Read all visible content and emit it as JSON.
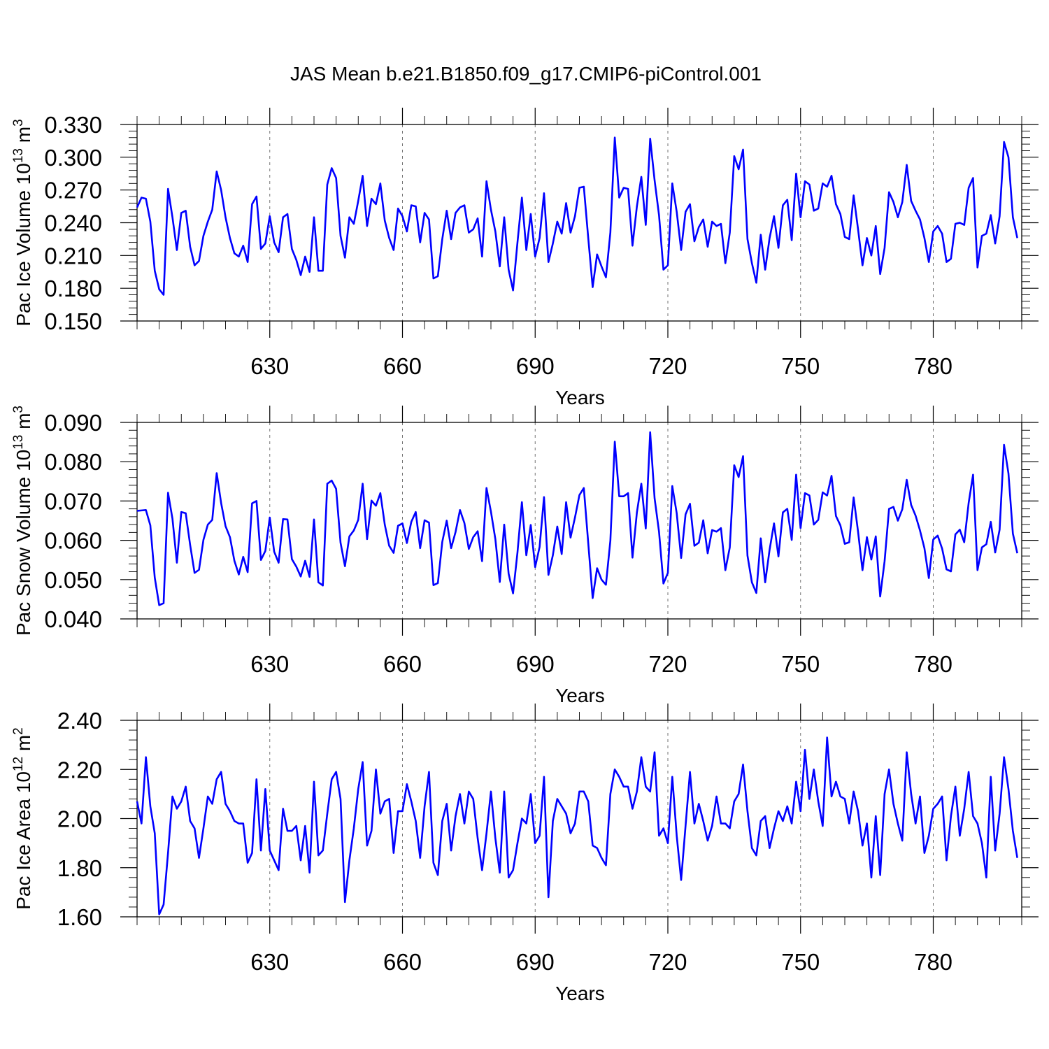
{
  "figure_title": "JAS Mean b.e21.B1850.f09_g17.CMIP6-piControl.001",
  "colors": {
    "series": "#0000ff",
    "axes": "#000000",
    "background": "#ffffff"
  },
  "chart_data": [
    {
      "type": "line",
      "ylabel": "Pac Ice Volume",
      "ylabel_unit_base": "10",
      "ylabel_unit_exp": "13",
      "ylabel_unit_name": "m",
      "ylabel_unit_pow": "3",
      "xlabel": "Years",
      "xlim": [
        600,
        800
      ],
      "ylim": [
        0.15,
        0.33
      ],
      "x_ticks": [
        630,
        660,
        690,
        720,
        750,
        780
      ],
      "x_tick_labels": [
        "630",
        "660",
        "690",
        "720",
        "750",
        "780"
      ],
      "y_ticks": [
        0.15,
        0.18,
        0.21,
        0.24,
        0.27,
        0.3,
        0.33
      ],
      "y_tick_labels": [
        "0.150",
        "0.180",
        "0.210",
        "0.240",
        "0.270",
        "0.300",
        "0.330"
      ],
      "y_minor_step": 0.006,
      "x_start": 600,
      "values": [
        0.254,
        0.263,
        0.262,
        0.241,
        0.196,
        0.179,
        0.174,
        0.271,
        0.245,
        0.215,
        0.249,
        0.251,
        0.218,
        0.201,
        0.205,
        0.228,
        0.241,
        0.252,
        0.287,
        0.27,
        0.245,
        0.226,
        0.212,
        0.209,
        0.219,
        0.204,
        0.257,
        0.264,
        0.216,
        0.221,
        0.246,
        0.222,
        0.213,
        0.245,
        0.248,
        0.216,
        0.206,
        0.192,
        0.209,
        0.195,
        0.245,
        0.196,
        0.196,
        0.275,
        0.29,
        0.281,
        0.228,
        0.208,
        0.245,
        0.239,
        0.26,
        0.283,
        0.237,
        0.262,
        0.257,
        0.276,
        0.242,
        0.226,
        0.215,
        0.253,
        0.246,
        0.232,
        0.256,
        0.255,
        0.222,
        0.249,
        0.243,
        0.189,
        0.191,
        0.225,
        0.251,
        0.225,
        0.249,
        0.254,
        0.256,
        0.231,
        0.234,
        0.244,
        0.209,
        0.278,
        0.252,
        0.232,
        0.2,
        0.245,
        0.197,
        0.178,
        0.222,
        0.263,
        0.215,
        0.248,
        0.209,
        0.226,
        0.267,
        0.204,
        0.221,
        0.241,
        0.23,
        0.258,
        0.231,
        0.246,
        0.272,
        0.273,
        0.226,
        0.181,
        0.211,
        0.2,
        0.19,
        0.231,
        0.318,
        0.263,
        0.272,
        0.271,
        0.219,
        0.255,
        0.282,
        0.238,
        0.317,
        0.279,
        0.247,
        0.197,
        0.201,
        0.276,
        0.25,
        0.215,
        0.25,
        0.257,
        0.223,
        0.236,
        0.243,
        0.218,
        0.241,
        0.237,
        0.239,
        0.203,
        0.231,
        0.301,
        0.289,
        0.307,
        0.225,
        0.203,
        0.185,
        0.229,
        0.197,
        0.226,
        0.246,
        0.217,
        0.256,
        0.261,
        0.224,
        0.285,
        0.245,
        0.278,
        0.275,
        0.251,
        0.253,
        0.276,
        0.273,
        0.283,
        0.257,
        0.248,
        0.227,
        0.225,
        0.265,
        0.234,
        0.201,
        0.226,
        0.21,
        0.237,
        0.193,
        0.217,
        0.268,
        0.259,
        0.245,
        0.259,
        0.293,
        0.26,
        0.251,
        0.243,
        0.226,
        0.204,
        0.232,
        0.237,
        0.23,
        0.204,
        0.207,
        0.239,
        0.24,
        0.238,
        0.272,
        0.281,
        0.199,
        0.228,
        0.23,
        0.247,
        0.221,
        0.246,
        0.314,
        0.3,
        0.245,
        0.226
      ]
    },
    {
      "type": "line",
      "ylabel": "Pac Snow Volume",
      "ylabel_unit_base": "10",
      "ylabel_unit_exp": "13",
      "ylabel_unit_name": "m",
      "ylabel_unit_pow": "3",
      "xlabel": "Years",
      "xlim": [
        600,
        800
      ],
      "ylim": [
        0.04,
        0.09
      ],
      "x_ticks": [
        630,
        660,
        690,
        720,
        750,
        780
      ],
      "x_tick_labels": [
        "630",
        "660",
        "690",
        "720",
        "750",
        "780"
      ],
      "y_ticks": [
        0.04,
        0.05,
        0.06,
        0.07,
        0.08,
        0.09
      ],
      "y_tick_labels": [
        "0.040",
        "0.050",
        "0.060",
        "0.070",
        "0.080",
        "0.090"
      ],
      "y_minor_step": 0.002,
      "x_start": 600,
      "values": [
        0.0675,
        0.0676,
        0.0677,
        0.0638,
        0.0505,
        0.0435,
        0.044,
        0.0721,
        0.0655,
        0.0543,
        0.0672,
        0.0669,
        0.0588,
        0.0517,
        0.0525,
        0.0601,
        0.064,
        0.0652,
        0.0771,
        0.0695,
        0.0636,
        0.0608,
        0.0548,
        0.0513,
        0.0558,
        0.0519,
        0.0694,
        0.07,
        0.055,
        0.0573,
        0.0658,
        0.0571,
        0.0543,
        0.0654,
        0.0653,
        0.0552,
        0.0533,
        0.0508,
        0.0548,
        0.0507,
        0.0653,
        0.0493,
        0.0485,
        0.0744,
        0.0752,
        0.0731,
        0.0594,
        0.0534,
        0.061,
        0.0625,
        0.0652,
        0.0744,
        0.0603,
        0.0701,
        0.0688,
        0.072,
        0.064,
        0.0586,
        0.0568,
        0.0637,
        0.0643,
        0.0593,
        0.0647,
        0.0672,
        0.058,
        0.0651,
        0.0645,
        0.0486,
        0.0491,
        0.0596,
        0.065,
        0.058,
        0.0621,
        0.0677,
        0.0644,
        0.0578,
        0.0608,
        0.0623,
        0.0547,
        0.0733,
        0.0673,
        0.0603,
        0.0494,
        0.064,
        0.0515,
        0.0465,
        0.0569,
        0.0697,
        0.0562,
        0.0639,
        0.0532,
        0.0583,
        0.071,
        0.0512,
        0.0562,
        0.0635,
        0.0565,
        0.0697,
        0.0607,
        0.0658,
        0.0715,
        0.0733,
        0.0593,
        0.0453,
        0.0529,
        0.05,
        0.0487,
        0.0599,
        0.0851,
        0.0712,
        0.0712,
        0.072,
        0.0556,
        0.0671,
        0.0744,
        0.063,
        0.0875,
        0.0707,
        0.0622,
        0.049,
        0.0517,
        0.0738,
        0.0669,
        0.0555,
        0.0666,
        0.0693,
        0.0586,
        0.0594,
        0.0651,
        0.0567,
        0.0626,
        0.0622,
        0.0631,
        0.0524,
        0.0582,
        0.0791,
        0.0761,
        0.0814,
        0.0561,
        0.0493,
        0.0466,
        0.0605,
        0.0493,
        0.0576,
        0.0643,
        0.0559,
        0.0671,
        0.068,
        0.0601,
        0.0767,
        0.0631,
        0.072,
        0.0714,
        0.064,
        0.0652,
        0.0722,
        0.0714,
        0.0764,
        0.0662,
        0.0638,
        0.0591,
        0.0595,
        0.0709,
        0.0622,
        0.0524,
        0.0608,
        0.0551,
        0.061,
        0.0457,
        0.0547,
        0.068,
        0.0685,
        0.065,
        0.0679,
        0.0754,
        0.069,
        0.0663,
        0.0625,
        0.058,
        0.0504,
        0.0602,
        0.0612,
        0.0579,
        0.0526,
        0.0521,
        0.0615,
        0.0627,
        0.0595,
        0.0695,
        0.0767,
        0.0524,
        0.0582,
        0.059,
        0.0647,
        0.0569,
        0.0627,
        0.0843,
        0.077,
        0.0617,
        0.0567
      ]
    },
    {
      "type": "line",
      "ylabel": "Pac Ice Area",
      "ylabel_unit_base": "10",
      "ylabel_unit_exp": "12",
      "ylabel_unit_name": "m",
      "ylabel_unit_pow": "2",
      "xlabel": "Years",
      "xlim": [
        600,
        800
      ],
      "ylim": [
        1.6,
        2.4
      ],
      "x_ticks": [
        630,
        660,
        690,
        720,
        750,
        780
      ],
      "x_tick_labels": [
        "630",
        "660",
        "690",
        "720",
        "750",
        "780"
      ],
      "y_ticks": [
        1.6,
        1.8,
        2.0,
        2.2,
        2.4
      ],
      "y_tick_labels": [
        "1.60",
        "1.80",
        "2.00",
        "2.20",
        "2.40"
      ],
      "y_minor_step": 0.04,
      "x_start": 600,
      "values": [
        2.07,
        1.98,
        2.25,
        2.05,
        1.94,
        1.61,
        1.65,
        1.86,
        2.09,
        2.04,
        2.07,
        2.13,
        1.99,
        1.96,
        1.84,
        1.96,
        2.09,
        2.06,
        2.16,
        2.19,
        2.06,
        2.03,
        1.99,
        1.98,
        1.98,
        1.82,
        1.86,
        2.16,
        1.87,
        2.12,
        1.87,
        1.83,
        1.79,
        2.04,
        1.95,
        1.95,
        1.97,
        1.83,
        1.97,
        1.78,
        2.15,
        1.85,
        1.87,
        2.02,
        2.16,
        2.19,
        2.08,
        1.66,
        1.83,
        1.96,
        2.12,
        2.23,
        1.89,
        1.95,
        2.2,
        2.02,
        2.07,
        2.08,
        1.86,
        2.03,
        2.03,
        2.14,
        2.07,
        1.99,
        1.84,
        2.05,
        2.19,
        1.82,
        1.77,
        1.99,
        2.06,
        1.87,
        2.01,
        2.1,
        1.98,
        2.11,
        2.08,
        1.92,
        1.79,
        1.94,
        2.11,
        1.92,
        1.78,
        2.11,
        1.76,
        1.79,
        1.9,
        2.0,
        1.98,
        2.1,
        1.9,
        1.93,
        2.17,
        1.68,
        1.99,
        2.08,
        2.05,
        2.02,
        1.94,
        1.98,
        2.11,
        2.11,
        2.07,
        1.89,
        1.88,
        1.84,
        1.81,
        2.1,
        2.2,
        2.17,
        2.13,
        2.13,
        2.04,
        2.11,
        2.25,
        2.13,
        2.11,
        2.27,
        1.93,
        1.96,
        1.9,
        2.17,
        1.93,
        1.75,
        1.97,
        2.19,
        1.98,
        2.06,
        1.99,
        1.91,
        1.97,
        2.09,
        1.98,
        1.98,
        1.96,
        2.07,
        2.1,
        2.22,
        2.03,
        1.88,
        1.85,
        1.99,
        2.01,
        1.88,
        1.96,
        2.03,
        1.99,
        2.05,
        1.98,
        2.15,
        2.03,
        2.28,
        2.08,
        2.2,
        2.07,
        1.97,
        2.33,
        2.09,
        2.15,
        2.09,
        2.08,
        1.98,
        2.11,
        2.03,
        1.89,
        1.98,
        1.76,
        2.01,
        1.77,
        2.1,
        2.2,
        2.06,
        1.98,
        1.91,
        2.27,
        2.1,
        1.98,
        2.09,
        1.86,
        1.93,
        2.04,
        2.06,
        2.09,
        1.83,
        2.01,
        2.13,
        1.93,
        2.04,
        2.19,
        2.01,
        1.98,
        1.9,
        1.76,
        2.17,
        1.87,
        2.02,
        2.25,
        2.12,
        1.95,
        1.84
      ]
    }
  ]
}
